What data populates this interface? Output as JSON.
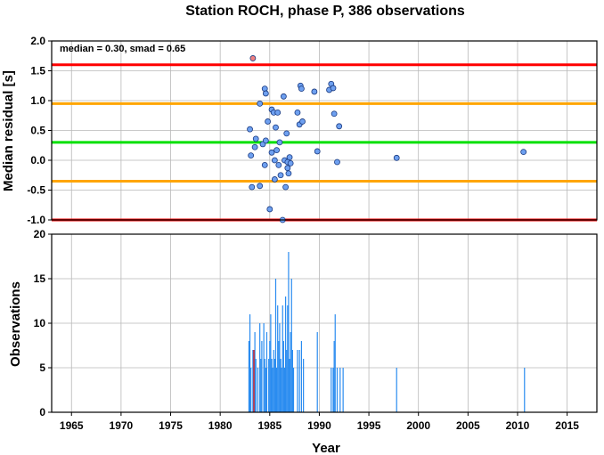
{
  "title": "Station ROCH, phase P, 386 observations",
  "chart_data": [
    {
      "type": "scatter",
      "ylabel": "Median residual [s]",
      "xlim": [
        1963,
        2018
      ],
      "ylim": [
        -1.0,
        2.0
      ],
      "y_ticks": [
        "-1.0",
        "-0.5",
        "0.0",
        "0.5",
        "1.0",
        "1.5",
        "2.0"
      ],
      "grid": true,
      "annotation": "median = 0.30, smad = 0.65",
      "reference_lines": [
        {
          "y": 1.6,
          "color": "#ff0000"
        },
        {
          "y": 0.95,
          "color": "#ffa500"
        },
        {
          "y": 0.3,
          "color": "#00e000"
        },
        {
          "y": -0.35,
          "color": "#ffa500"
        },
        {
          "y": -1.0,
          "color": "#ff0000"
        }
      ],
      "points": [
        [
          1983.0,
          0.52
        ],
        [
          1983.1,
          0.08
        ],
        [
          1983.2,
          -0.45
        ],
        [
          1983.3,
          1.71
        ],
        [
          1983.5,
          0.22
        ],
        [
          1983.6,
          0.36
        ],
        [
          1984.0,
          0.95
        ],
        [
          1984.0,
          -0.43
        ],
        [
          1984.3,
          0.27
        ],
        [
          1984.5,
          1.2
        ],
        [
          1984.5,
          -0.08
        ],
        [
          1984.6,
          1.12
        ],
        [
          1984.6,
          0.33
        ],
        [
          1984.8,
          0.65
        ],
        [
          1985.0,
          -0.82
        ],
        [
          1985.2,
          0.85
        ],
        [
          1985.2,
          0.13
        ],
        [
          1985.4,
          0.8
        ],
        [
          1985.5,
          0.0
        ],
        [
          1985.5,
          -0.32
        ],
        [
          1985.6,
          0.55
        ],
        [
          1985.7,
          0.17
        ],
        [
          1985.8,
          0.8
        ],
        [
          1985.9,
          -0.08
        ],
        [
          1986.0,
          0.3
        ],
        [
          1986.1,
          -0.25
        ],
        [
          1986.3,
          -1.0
        ],
        [
          1986.4,
          1.07
        ],
        [
          1986.5,
          0.0
        ],
        [
          1986.6,
          -0.45
        ],
        [
          1986.7,
          0.45
        ],
        [
          1986.8,
          -0.03
        ],
        [
          1986.8,
          -0.13
        ],
        [
          1986.9,
          -0.22
        ],
        [
          1987.0,
          0.05
        ],
        [
          1987.1,
          -0.05
        ],
        [
          1987.8,
          0.8
        ],
        [
          1988.0,
          0.6
        ],
        [
          1988.1,
          1.25
        ],
        [
          1988.2,
          1.2
        ],
        [
          1988.3,
          0.65
        ],
        [
          1989.5,
          1.15
        ],
        [
          1989.8,
          0.15
        ],
        [
          1991.0,
          1.18
        ],
        [
          1991.2,
          1.28
        ],
        [
          1991.4,
          1.21
        ],
        [
          1991.5,
          0.78
        ],
        [
          1991.8,
          -0.03
        ],
        [
          1992.0,
          0.57
        ],
        [
          1997.8,
          0.04
        ],
        [
          2010.6,
          0.14
        ]
      ],
      "highlight_points": [
        [
          1983.3,
          1.71
        ]
      ],
      "point_color": "#6ea0f0",
      "highlight_color": "#f08080"
    },
    {
      "type": "bar",
      "xlabel": "Year",
      "ylabel": "Observations",
      "xlim": [
        1963,
        2018
      ],
      "ylim": [
        0,
        20
      ],
      "x_ticks": [
        "1965",
        "1970",
        "1975",
        "1980",
        "1985",
        "1990",
        "1995",
        "2000",
        "2005",
        "2010",
        "2015"
      ],
      "y_ticks": [
        "0",
        "5",
        "10",
        "15",
        "20"
      ],
      "grid": true,
      "bar_color": "#2a8cf0",
      "highlight_color": "#e02020",
      "bars": [
        [
          1982.9,
          8
        ],
        [
          1983.0,
          11
        ],
        [
          1983.1,
          5
        ],
        [
          1983.3,
          7
        ],
        [
          1983.5,
          9
        ],
        [
          1983.6,
          6
        ],
        [
          1983.8,
          5
        ],
        [
          1984.0,
          10
        ],
        [
          1984.1,
          6
        ],
        [
          1984.2,
          8
        ],
        [
          1984.4,
          10
        ],
        [
          1984.5,
          6
        ],
        [
          1984.6,
          5
        ],
        [
          1984.7,
          9
        ],
        [
          1984.9,
          6
        ],
        [
          1985.0,
          8
        ],
        [
          1985.1,
          11
        ],
        [
          1985.2,
          6
        ],
        [
          1985.3,
          5
        ],
        [
          1985.4,
          7
        ],
        [
          1985.5,
          6
        ],
        [
          1985.6,
          15
        ],
        [
          1985.7,
          5
        ],
        [
          1985.8,
          12
        ],
        [
          1985.9,
          8
        ],
        [
          1986.0,
          10
        ],
        [
          1986.1,
          6
        ],
        [
          1986.2,
          5
        ],
        [
          1986.3,
          12
        ],
        [
          1986.4,
          8
        ],
        [
          1986.5,
          5
        ],
        [
          1986.6,
          13
        ],
        [
          1986.7,
          7
        ],
        [
          1986.8,
          12
        ],
        [
          1986.9,
          18
        ],
        [
          1987.0,
          6
        ],
        [
          1987.1,
          9
        ],
        [
          1987.2,
          15
        ],
        [
          1987.3,
          7
        ],
        [
          1987.4,
          5
        ],
        [
          1987.8,
          7
        ],
        [
          1988.0,
          7
        ],
        [
          1988.2,
          8
        ],
        [
          1988.4,
          6
        ],
        [
          1989.8,
          9
        ],
        [
          1991.2,
          5
        ],
        [
          1991.4,
          5
        ],
        [
          1991.5,
          8
        ],
        [
          1991.6,
          11
        ],
        [
          1991.8,
          5
        ],
        [
          1992.1,
          5
        ],
        [
          1992.4,
          5
        ],
        [
          1997.8,
          5
        ],
        [
          2010.7,
          5
        ]
      ],
      "highlight_bars": [
        [
          1983.4,
          7
        ]
      ]
    }
  ]
}
